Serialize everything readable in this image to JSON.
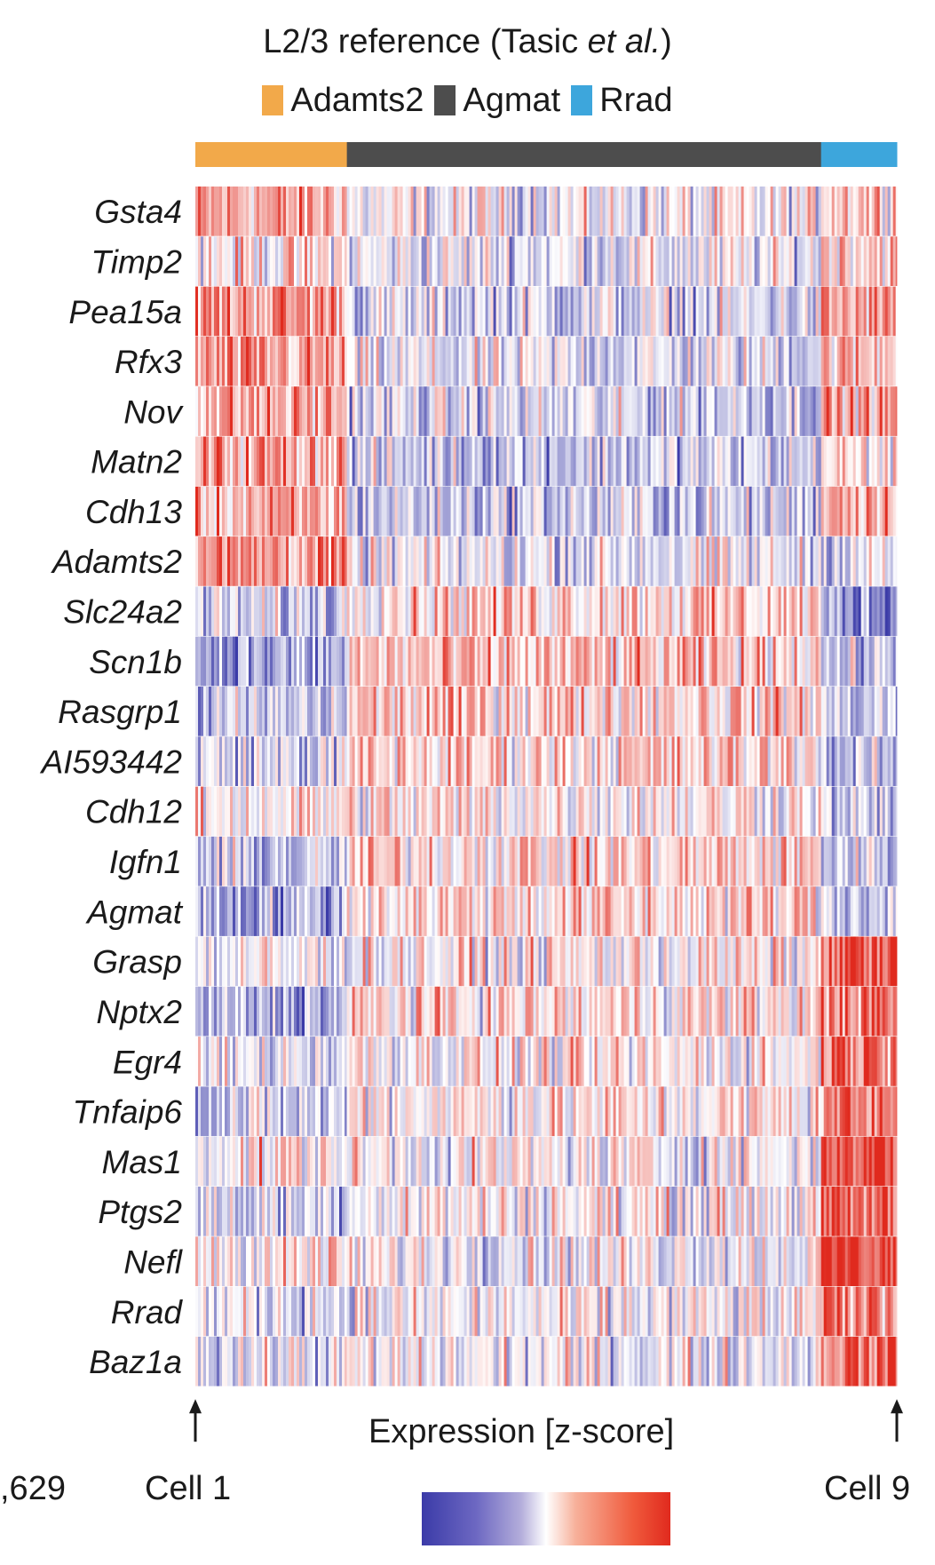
{
  "chart_data": {
    "type": "heatmap",
    "title": "L2/3 reference (Tasic et al.)",
    "title_parts": [
      "L2/3 reference (Tasic ",
      "et al.",
      ")"
    ],
    "colorbar_label": "Expression [z-score]",
    "rows": [
      "Gsta4",
      "Timp2",
      "Pea15a",
      "Rfx3",
      "Nov",
      "Matn2",
      "Cdh13",
      "Adamts2",
      "Slc24a2",
      "Scn1b",
      "Rasgrp1",
      "AI593442",
      "Cdh12",
      "Igfn1",
      "Agmat",
      "Grasp",
      "Nptx2",
      "Egr4",
      "Tnfaip6",
      "Mas1",
      "Ptgs2",
      "Nefl",
      "Rrad",
      "Baz1a"
    ],
    "groups": [
      {
        "name": "Adamts2",
        "color": "#f2a94a",
        "fraction": 0.216
      },
      {
        "name": "Agmat",
        "color": "#4d4d4d",
        "fraction": 0.676
      },
      {
        "name": "Rrad",
        "color": "#3da6dc",
        "fraction": 0.108
      }
    ],
    "group_row_means": {
      "Adamts2": [
        0.8,
        0.2,
        1.0,
        0.8,
        0.8,
        0.9,
        0.7,
        1.0,
        -0.5,
        -0.9,
        -0.6,
        -0.4,
        0.2,
        -0.6,
        -0.8,
        -0.1,
        -0.8,
        -0.2,
        -0.5,
        0.2,
        -0.4,
        0.2,
        -0.2,
        -0.2
      ],
      "Agmat": [
        -0.1,
        -0.2,
        -0.4,
        -0.3,
        -0.4,
        -0.5,
        -0.5,
        -0.2,
        0.5,
        0.5,
        0.5,
        0.4,
        0.2,
        0.4,
        0.4,
        0.1,
        0.3,
        0.1,
        0.2,
        0.0,
        0.1,
        0.0,
        -0.1,
        -0.1
      ],
      "Rrad": [
        0.7,
        0.6,
        0.8,
        0.6,
        0.8,
        0.2,
        1.0,
        -0.2,
        -1.0,
        -0.6,
        -0.5,
        -0.7,
        -0.6,
        -0.4,
        -0.4,
        1.6,
        1.3,
        1.5,
        1.2,
        1.8,
        1.3,
        1.8,
        1.2,
        1.4
      ]
    },
    "color_scale": {
      "low": "#3b3ba8",
      "mid": "#ffffff",
      "high": "#e02a1e"
    },
    "first_cell_label": "Cell 1",
    "last_cell_label": "Cell 9",
    "left_count_label": ",629"
  }
}
